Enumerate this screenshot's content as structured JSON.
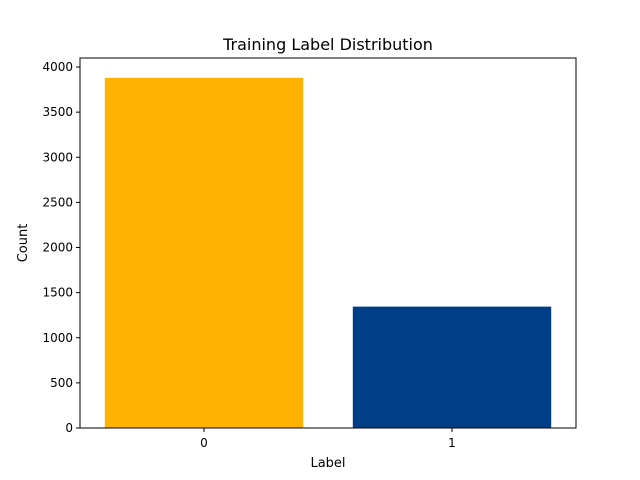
{
  "chart_data": {
    "type": "bar",
    "title": "Training Label Distribution",
    "xlabel": "Label",
    "ylabel": "Count",
    "categories": [
      "0",
      "1"
    ],
    "values": [
      3880,
      1345
    ],
    "ylim": [
      0,
      4100
    ],
    "yticks": [
      0,
      500,
      1000,
      1500,
      2000,
      2500,
      3000,
      3500,
      4000
    ],
    "ytick_labels": [
      "0",
      "500",
      "1000",
      "1500",
      "2000",
      "2500",
      "3000",
      "3500",
      "4000"
    ],
    "grid": false,
    "colors": [
      "#FFB300",
      "#003F88"
    ]
  }
}
